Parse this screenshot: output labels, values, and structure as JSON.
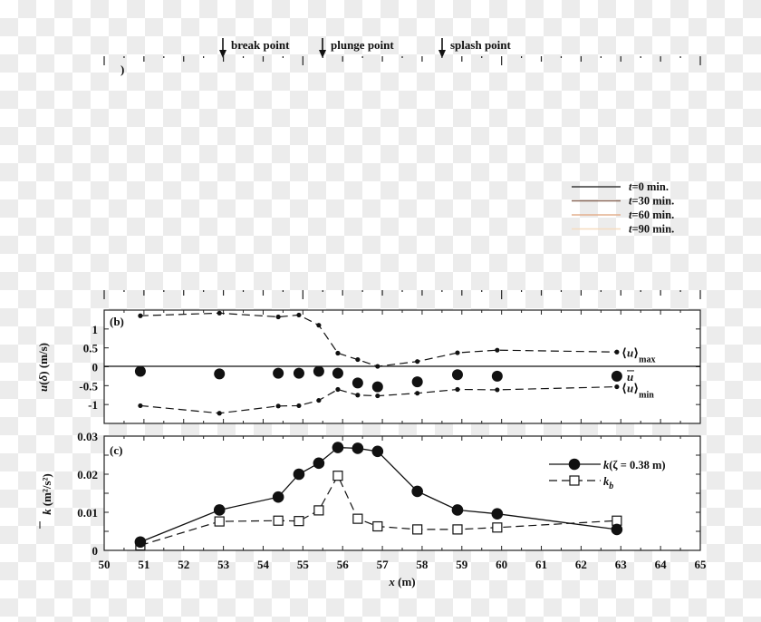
{
  "annotations": {
    "break_point": {
      "label": "break point",
      "x": 54.4
    },
    "plunge_point": {
      "label": "plunge point",
      "x": 55.9
    },
    "splash_point": {
      "label": "splash point",
      "x": 58.5
    },
    "panel_a_fragment": ")"
  },
  "panel_a_legend": [
    {
      "label_prefix": "t",
      "label": "=0 min.",
      "color": "#3a3a3a"
    },
    {
      "label_prefix": "t",
      "label": "=30 min.",
      "color": "#8a6a5c"
    },
    {
      "label_prefix": "t",
      "label": "=60 min.",
      "color": "#e4b08e"
    },
    {
      "label_prefix": "t",
      "label": "=90 min.",
      "color": "#f6dcc0"
    }
  ],
  "chart_data": [
    {
      "type": "line",
      "panel": "(b)",
      "title": "",
      "xlabel": "x (m)",
      "ylabel": "u(δ) (m/s)",
      "xlim": [
        50,
        65
      ],
      "ylim": [
        -1.5,
        1.5
      ],
      "yticks": [
        1,
        0.5,
        0,
        -0.5,
        -1
      ],
      "ytick_labels": [
        "1",
        "0.5",
        "0",
        "-0.5",
        "-1"
      ],
      "x": [
        50.91,
        52.9,
        54.38,
        54.9,
        55.4,
        55.88,
        56.38,
        56.88,
        57.88,
        58.89,
        59.89,
        62.9
      ],
      "series": [
        {
          "name": "⟨u⟩max",
          "style": "dashed line, small dots",
          "values": [
            1.35,
            1.42,
            1.32,
            1.37,
            1.1,
            0.36,
            0.19,
            0.01,
            0.14,
            0.37,
            0.44,
            0.39
          ]
        },
        {
          "name": "ū",
          "style": "large filled circles",
          "values": [
            -0.12,
            -0.19,
            -0.17,
            -0.17,
            -0.12,
            -0.17,
            -0.43,
            -0.53,
            -0.4,
            -0.21,
            -0.25,
            -0.25
          ]
        },
        {
          "name": "⟨u⟩min",
          "style": "dashed line, small dots",
          "values": [
            -1.03,
            -1.23,
            -1.04,
            -1.03,
            -0.89,
            -0.6,
            -0.75,
            -0.77,
            -0.7,
            -0.6,
            -0.61,
            -0.53
          ]
        }
      ],
      "series_labels": [
        {
          "main": "⟨u⟩",
          "sub": "max"
        },
        {
          "main": "u",
          "overline": true
        },
        {
          "main": "⟨u⟩",
          "sub": "min"
        }
      ],
      "grid": false
    },
    {
      "type": "line",
      "panel": "(c)",
      "title": "",
      "xlabel": "x (m)",
      "ylabel": "k̄ (m²/s²)",
      "xlim": [
        50,
        65
      ],
      "ylim": [
        0,
        0.03
      ],
      "xticks": [
        50,
        51,
        52,
        53,
        54,
        55,
        56,
        57,
        58,
        59,
        60,
        61,
        62,
        63,
        64,
        65
      ],
      "yticks": [
        0,
        0.01,
        0.02,
        0.03
      ],
      "ytick_labels": [
        "0",
        "0.01",
        "0.02",
        "0.03"
      ],
      "x": [
        50.91,
        52.9,
        54.38,
        54.9,
        55.4,
        55.88,
        56.38,
        56.88,
        57.88,
        58.89,
        59.89,
        62.9
      ],
      "series": [
        {
          "name": "k(ζ = 0.38 m)",
          "style": "solid line, filled circles",
          "values": [
            0.0022,
            0.0106,
            0.014,
            0.02,
            0.0229,
            0.027,
            0.0268,
            0.026,
            0.0155,
            0.0106,
            0.0096,
            0.0055
          ]
        },
        {
          "name": "k_b",
          "style": "dashed line, open squares",
          "values": [
            0.0013,
            0.0076,
            0.0078,
            0.0077,
            0.0105,
            0.0196,
            0.0083,
            0.0063,
            0.0055,
            0.0055,
            0.006,
            0.0078
          ]
        }
      ],
      "legend_position": "upper right",
      "grid": false
    }
  ],
  "axis": {
    "xlabel": "x (m)",
    "xlabel_unit": " (m)",
    "xlabel_var": "x"
  },
  "labels": {
    "panel_b": "(b)",
    "panel_c": "(c)",
    "ylabel_b": "u(δ) (m/s)",
    "ylabel_c_unit": "(m²/s²)",
    "ylabel_c_var": "k",
    "legend_k_var": "k",
    "legend_k": "(ζ = 0.38 m)",
    "legend_kb_var": "k",
    "legend_kb_sub": "b"
  }
}
